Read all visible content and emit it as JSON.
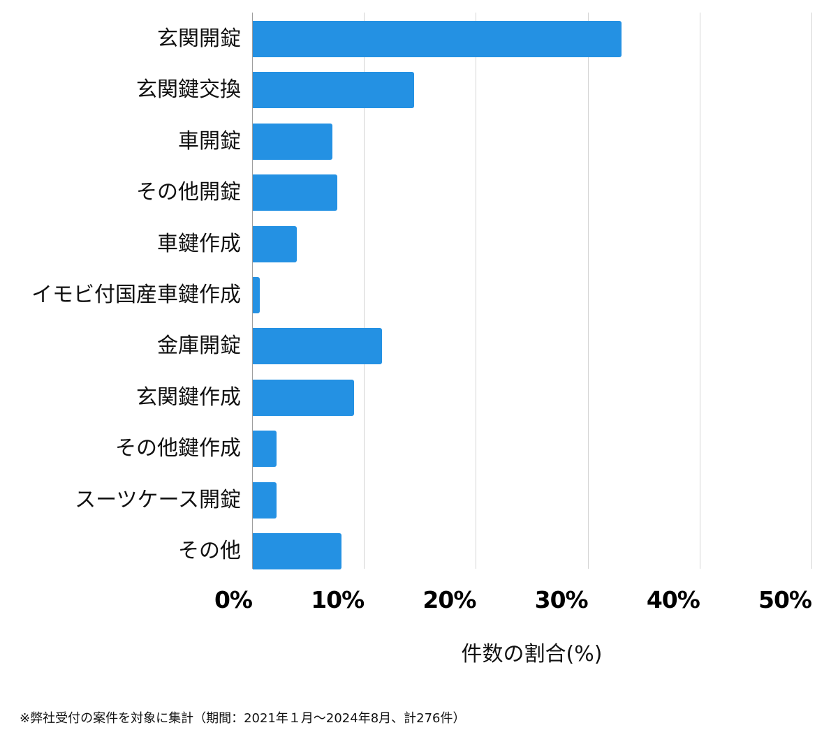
{
  "chart_data": {
    "type": "bar",
    "orientation": "horizontal",
    "title": "",
    "xlabel": "件数の割合(%)",
    "ylabel": "",
    "xlim": [
      0,
      50
    ],
    "grid": true,
    "legend": null,
    "bar_color": "#2491E3",
    "categories": [
      "玄関開錠",
      "玄関鍵交換",
      "車開錠",
      "その他開錠",
      "車鍵作成",
      "イモビ付国産車鍵作成",
      "金庫開錠",
      "玄関鍵作成",
      "その他鍵作成",
      "スーツケース開錠",
      "その他"
    ],
    "values": [
      33.0,
      14.5,
      7.2,
      7.6,
      4.0,
      0.7,
      11.6,
      9.1,
      2.2,
      2.2,
      8.0
    ],
    "x_ticks": [
      "0%",
      "10%",
      "20%",
      "30%",
      "40%",
      "50%"
    ],
    "x_tick_values": [
      0,
      10,
      20,
      30,
      40,
      50
    ],
    "annotations": [
      "※弊社受付の案件を対象に集計（期間：2021年１月〜2024年8月、計276件）"
    ]
  },
  "axis": {
    "x_title": "件数の割合(%)"
  },
  "footnote": "※弊社受付の案件を対象に集計（期間：2021年１月〜2024年8月、計276件）"
}
